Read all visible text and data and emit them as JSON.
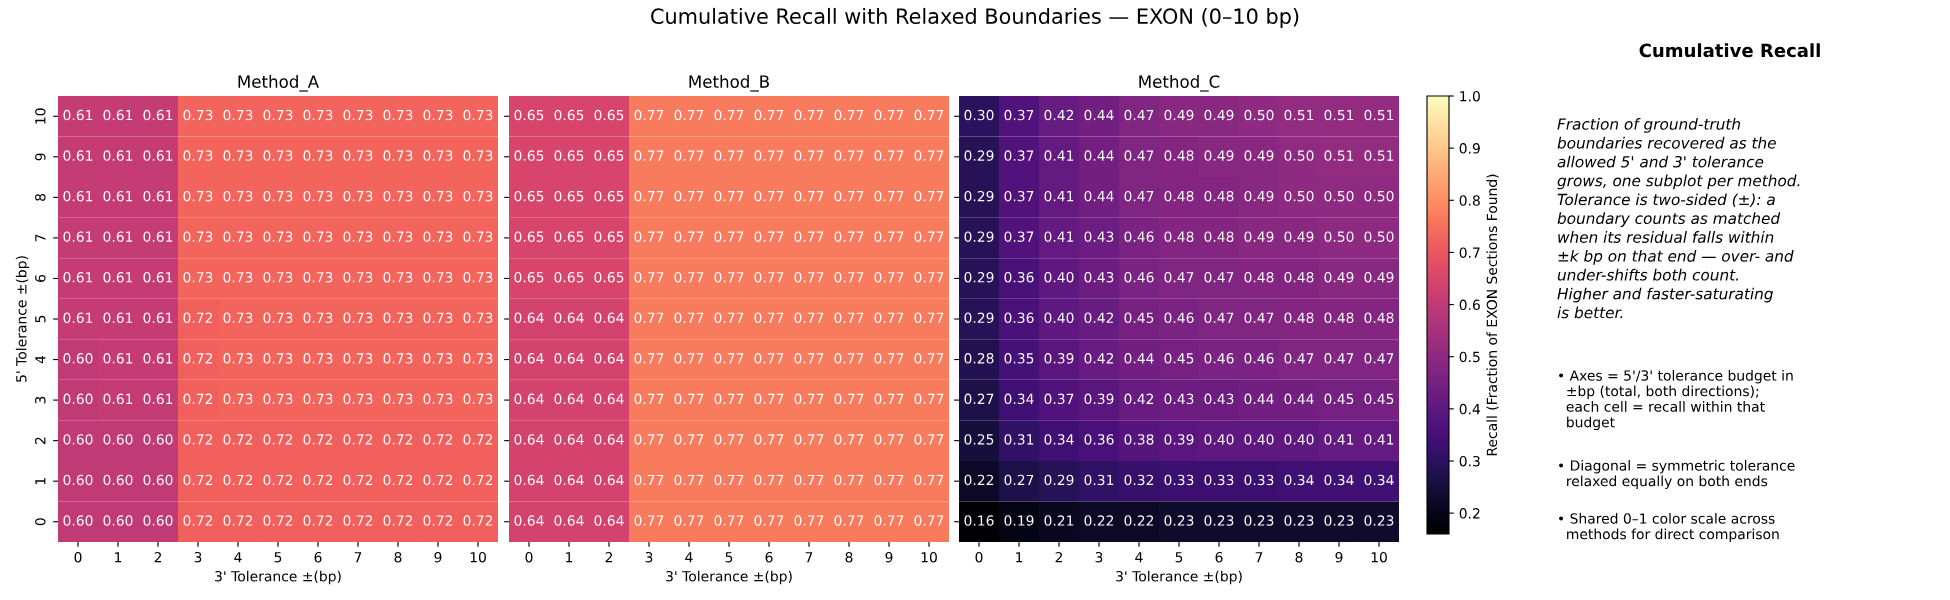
{
  "chart_data": [
    {
      "type": "other",
      "title": "Cumulative Recall with Relaxed Boundaries — EXON (0–10 bp)"
    },
    {
      "type": "heatmap",
      "title": "Method_A",
      "xlabel": "3' Tolerance ±(bp)",
      "ylabel": "5' Tolerance ±(bp)",
      "categories": [
        "0",
        "1",
        "2",
        "3",
        "4",
        "5",
        "6",
        "7",
        "8",
        "9",
        "10"
      ],
      "y_categories": [
        "10",
        "9",
        "8",
        "7",
        "6",
        "5",
        "4",
        "3",
        "2",
        "1",
        "0"
      ],
      "cells": [
        [
          0.61,
          0.61,
          0.61,
          0.73,
          0.73,
          0.73,
          0.73,
          0.73,
          0.73,
          0.73,
          0.73
        ],
        [
          0.61,
          0.61,
          0.61,
          0.73,
          0.73,
          0.73,
          0.73,
          0.73,
          0.73,
          0.73,
          0.73
        ],
        [
          0.61,
          0.61,
          0.61,
          0.73,
          0.73,
          0.73,
          0.73,
          0.73,
          0.73,
          0.73,
          0.73
        ],
        [
          0.61,
          0.61,
          0.61,
          0.73,
          0.73,
          0.73,
          0.73,
          0.73,
          0.73,
          0.73,
          0.73
        ],
        [
          0.61,
          0.61,
          0.61,
          0.73,
          0.73,
          0.73,
          0.73,
          0.73,
          0.73,
          0.73,
          0.73
        ],
        [
          0.61,
          0.61,
          0.61,
          0.72,
          0.73,
          0.73,
          0.73,
          0.73,
          0.73,
          0.73,
          0.73
        ],
        [
          0.6,
          0.61,
          0.61,
          0.72,
          0.73,
          0.73,
          0.73,
          0.73,
          0.73,
          0.73,
          0.73
        ],
        [
          0.6,
          0.61,
          0.61,
          0.72,
          0.73,
          0.73,
          0.73,
          0.73,
          0.73,
          0.73,
          0.73
        ],
        [
          0.6,
          0.6,
          0.6,
          0.72,
          0.72,
          0.72,
          0.72,
          0.72,
          0.72,
          0.72,
          0.72
        ],
        [
          0.6,
          0.6,
          0.6,
          0.72,
          0.72,
          0.72,
          0.72,
          0.72,
          0.72,
          0.72,
          0.72
        ],
        [
          0.6,
          0.6,
          0.6,
          0.72,
          0.72,
          0.72,
          0.72,
          0.72,
          0.72,
          0.72,
          0.72
        ]
      ],
      "cell_labels": [
        [
          "0.61",
          "0.61",
          "0.61",
          "0.73",
          "0.73",
          "0.73",
          "0.73",
          "0.73",
          "0.73",
          "0.73",
          "0.73"
        ],
        [
          "0.61",
          "0.61",
          "0.61",
          "0.73",
          "0.73",
          "0.73",
          "0.73",
          "0.73",
          "0.73",
          "0.73",
          "0.73"
        ],
        [
          "0.61",
          "0.61",
          "0.61",
          "0.73",
          "0.73",
          "0.73",
          "0.73",
          "0.73",
          "0.73",
          "0.73",
          "0.73"
        ],
        [
          "0.61",
          "0.61",
          "0.61",
          "0.73",
          "0.73",
          "0.73",
          "0.73",
          "0.73",
          "0.73",
          "0.73",
          "0.73"
        ],
        [
          "0.61",
          "0.61",
          "0.61",
          "0.73",
          "0.73",
          "0.73",
          "0.73",
          "0.73",
          "0.73",
          "0.73",
          "0.73"
        ],
        [
          "0.61",
          "0.61",
          "0.61",
          "0.72",
          "0.73",
          "0.73",
          "0.73",
          "0.73",
          "0.73",
          "0.73",
          "0.73"
        ],
        [
          "0.60",
          "0.61",
          "0.61",
          "0.72",
          "0.73",
          "0.73",
          "0.73",
          "0.73",
          "0.73",
          "0.73",
          "0.73"
        ],
        [
          "0.60",
          "0.61",
          "0.61",
          "0.72",
          "0.73",
          "0.73",
          "0.73",
          "0.73",
          "0.73",
          "0.73",
          "0.73"
        ],
        [
          "0.60",
          "0.60",
          "0.60",
          "0.72",
          "0.72",
          "0.72",
          "0.72",
          "0.72",
          "0.72",
          "0.72",
          "0.72"
        ],
        [
          "0.60",
          "0.60",
          "0.60",
          "0.72",
          "0.72",
          "0.72",
          "0.72",
          "0.72",
          "0.72",
          "0.72",
          "0.72"
        ],
        [
          "0.60",
          "0.60",
          "0.60",
          "0.72",
          "0.72",
          "0.72",
          "0.72",
          "0.72",
          "0.72",
          "0.72",
          "0.72"
        ]
      ]
    },
    {
      "type": "heatmap",
      "title": "Method_B",
      "xlabel": "3' Tolerance ±(bp)",
      "categories": [
        "0",
        "1",
        "2",
        "3",
        "4",
        "5",
        "6",
        "7",
        "8",
        "9",
        "10"
      ],
      "y_categories": [
        "10",
        "9",
        "8",
        "7",
        "6",
        "5",
        "4",
        "3",
        "2",
        "1",
        "0"
      ],
      "cells": [
        [
          0.65,
          0.65,
          0.65,
          0.77,
          0.77,
          0.77,
          0.77,
          0.77,
          0.77,
          0.77,
          0.77
        ],
        [
          0.65,
          0.65,
          0.65,
          0.77,
          0.77,
          0.77,
          0.77,
          0.77,
          0.77,
          0.77,
          0.77
        ],
        [
          0.65,
          0.65,
          0.65,
          0.77,
          0.77,
          0.77,
          0.77,
          0.77,
          0.77,
          0.77,
          0.77
        ],
        [
          0.65,
          0.65,
          0.65,
          0.77,
          0.77,
          0.77,
          0.77,
          0.77,
          0.77,
          0.77,
          0.77
        ],
        [
          0.65,
          0.65,
          0.65,
          0.77,
          0.77,
          0.77,
          0.77,
          0.77,
          0.77,
          0.77,
          0.77
        ],
        [
          0.64,
          0.64,
          0.64,
          0.77,
          0.77,
          0.77,
          0.77,
          0.77,
          0.77,
          0.77,
          0.77
        ],
        [
          0.64,
          0.64,
          0.64,
          0.77,
          0.77,
          0.77,
          0.77,
          0.77,
          0.77,
          0.77,
          0.77
        ],
        [
          0.64,
          0.64,
          0.64,
          0.77,
          0.77,
          0.77,
          0.77,
          0.77,
          0.77,
          0.77,
          0.77
        ],
        [
          0.64,
          0.64,
          0.64,
          0.77,
          0.77,
          0.77,
          0.77,
          0.77,
          0.77,
          0.77,
          0.77
        ],
        [
          0.64,
          0.64,
          0.64,
          0.77,
          0.77,
          0.77,
          0.77,
          0.77,
          0.77,
          0.77,
          0.77
        ],
        [
          0.64,
          0.64,
          0.64,
          0.77,
          0.77,
          0.77,
          0.77,
          0.77,
          0.77,
          0.77,
          0.77
        ]
      ],
      "data_labels": true,
      "tick_labels": "x"
    },
    {
      "type": "heatmap",
      "title": "Method_C",
      "xlabel": "3' Tolerance ±(bp)",
      "categories": [
        "0",
        "1",
        "2",
        "3",
        "4",
        "5",
        "6",
        "7",
        "8",
        "9",
        "10"
      ],
      "y_categories": [
        "10",
        "9",
        "8",
        "7",
        "6",
        "5",
        "4",
        "3",
        "2",
        "1",
        "0"
      ],
      "cells": [
        [
          0.3,
          0.37,
          0.42,
          0.44,
          0.47,
          0.49,
          0.49,
          0.5,
          0.51,
          0.51,
          0.51
        ],
        [
          0.29,
          0.37,
          0.41,
          0.44,
          0.47,
          0.48,
          0.49,
          0.49,
          0.5,
          0.51,
          0.51
        ],
        [
          0.29,
          0.37,
          0.41,
          0.44,
          0.47,
          0.48,
          0.48,
          0.49,
          0.5,
          0.5,
          0.5
        ],
        [
          0.29,
          0.37,
          0.41,
          0.43,
          0.46,
          0.48,
          0.48,
          0.49,
          0.49,
          0.5,
          0.5
        ],
        [
          0.29,
          0.36,
          0.4,
          0.43,
          0.46,
          0.47,
          0.47,
          0.48,
          0.48,
          0.49,
          0.49
        ],
        [
          0.29,
          0.36,
          0.4,
          0.42,
          0.45,
          0.46,
          0.47,
          0.47,
          0.48,
          0.48,
          0.48
        ],
        [
          0.28,
          0.35,
          0.39,
          0.42,
          0.44,
          0.45,
          0.46,
          0.46,
          0.47,
          0.47,
          0.47
        ],
        [
          0.27,
          0.34,
          0.37,
          0.39,
          0.42,
          0.43,
          0.43,
          0.44,
          0.44,
          0.45,
          0.45
        ],
        [
          0.25,
          0.31,
          0.34,
          0.36,
          0.38,
          0.39,
          0.4,
          0.4,
          0.4,
          0.41,
          0.41
        ],
        [
          0.22,
          0.27,
          0.29,
          0.31,
          0.32,
          0.33,
          0.33,
          0.33,
          0.34,
          0.34,
          0.34
        ],
        [
          0.16,
          0.19,
          0.21,
          0.22,
          0.22,
          0.23,
          0.23,
          0.23,
          0.23,
          0.23,
          0.23
        ]
      ],
      "cell_labels": [
        [
          "0.30",
          "0.37",
          "0.42",
          "0.44",
          "0.47",
          "0.49",
          "0.49",
          "0.50",
          "0.51",
          "0.51",
          "0.51"
        ],
        [
          "0.29",
          "0.37",
          "0.41",
          "0.44",
          "0.47",
          "0.48",
          "0.49",
          "0.49",
          "0.50",
          "0.51",
          "0.51"
        ],
        [
          "0.29",
          "0.37",
          "0.41",
          "0.44",
          "0.47",
          "0.48",
          "0.48",
          "0.49",
          "0.50",
          "0.50",
          "0.50"
        ],
        [
          "0.29",
          "0.37",
          "0.41",
          "0.43",
          "0.46",
          "0.48",
          "0.48",
          "0.49",
          "0.49",
          "0.50",
          "0.50"
        ],
        [
          "0.29",
          "0.36",
          "0.40",
          "0.43",
          "0.46",
          "0.47",
          "0.47",
          "0.48",
          "0.48",
          "0.49",
          "0.49"
        ],
        [
          "0.29",
          "0.36",
          "0.40",
          "0.42",
          "0.45",
          "0.46",
          "0.47",
          "0.47",
          "0.48",
          "0.48",
          "0.48"
        ],
        [
          "0.28",
          "0.35",
          "0.39",
          "0.42",
          "0.44",
          "0.45",
          "0.46",
          "0.46",
          "0.47",
          "0.47",
          "0.47"
        ],
        [
          "0.27",
          "0.34",
          "0.37",
          "0.39",
          "0.42",
          "0.43",
          "0.43",
          "0.44",
          "0.44",
          "0.45",
          "0.45"
        ],
        [
          "0.25",
          "0.31",
          "0.34",
          "0.36",
          "0.38",
          "0.39",
          "0.40",
          "0.40",
          "0.40",
          "0.41",
          "0.41"
        ],
        [
          "0.22",
          "0.27",
          "0.29",
          "0.31",
          "0.32",
          "0.33",
          "0.33",
          "0.33",
          "0.34",
          "0.34",
          "0.34"
        ],
        [
          "0.16",
          "0.19",
          "0.21",
          "0.22",
          "0.22",
          "0.23",
          "0.23",
          "0.23",
          "0.23",
          "0.23",
          "0.23"
        ]
      ],
      "clim": [
        0.16,
        1.0
      ],
      "cticks": [
        0.2,
        0.3,
        0.4,
        0.5,
        0.6,
        0.7,
        0.8,
        0.9,
        {
          "value": 1.0,
          "label": "1.0"
        }
      ],
      "clabel": "Recall (Fraction of EXON Sections Found)",
      "tick_labels": "x"
    },
    {
      "type": "other",
      "title": "Cumulative Recall",
      "annotations": [
        "Fraction of ground-truth\nboundaries recovered as the\nallowed 5' and 3' tolerance\ngrows, one subplot per method.\nTolerance is two-sided (±): a\nboundary counts as matched\nwhen its residual falls within\n±k bp on that end — over- and\nunder-shifts both count.\nHigher and faster-saturating\nis better.",
        "• Axes = 5'/3' tolerance budget in\n  ±bp (total, both directions);\n  each cell = recall within that\n  budget",
        "• Diagonal = symmetric tolerance\n  relaxed equally on both ends",
        "• Shared 0–1 color scale across\n  methods for direct comparison"
      ]
    }
  ]
}
